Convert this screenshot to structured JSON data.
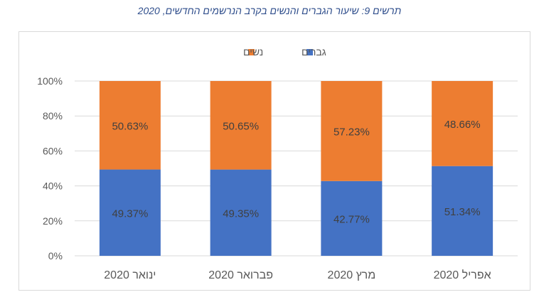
{
  "title": "תרשים 9: שיעור הגברים והנשים בקרב הנרשמים החדשים, 2020",
  "chart_data": {
    "type": "bar",
    "stacked": true,
    "percent_axis": true,
    "categories": [
      "ינואר 2020",
      "פברואר 2020",
      "מרץ 2020",
      "אפריל 2020"
    ],
    "series": [
      {
        "name": "גברים",
        "color": "#4472c4",
        "values": [
          49.37,
          49.35,
          42.77,
          51.34
        ],
        "labels": [
          "49.37%",
          "49.35%",
          "42.77%",
          "51.34%"
        ]
      },
      {
        "name": "נשים",
        "color": "#ed7d31",
        "values": [
          50.63,
          50.65,
          57.23,
          48.66
        ],
        "labels": [
          "50.63%",
          "50.65%",
          "57.23%",
          "48.66%"
        ]
      }
    ],
    "ylim": [
      0,
      100
    ],
    "yticks": [
      "0%",
      "20%",
      "40%",
      "60%",
      "80%",
      "100%"
    ],
    "grid": true,
    "legend_position": "top"
  }
}
